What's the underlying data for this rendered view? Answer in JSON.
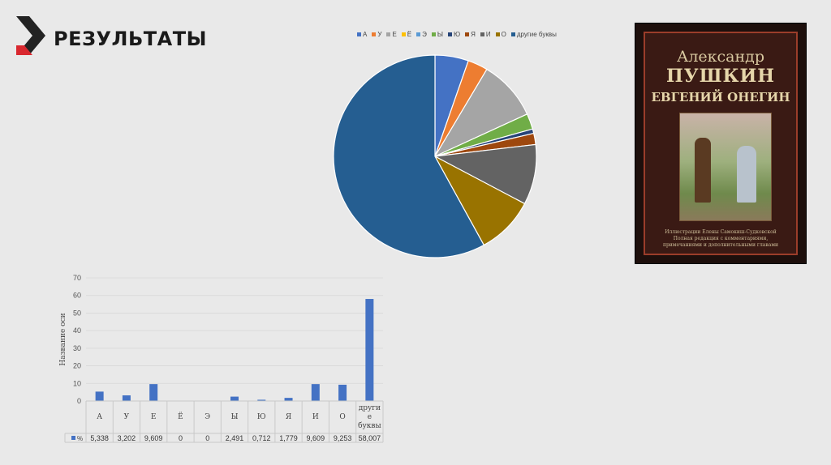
{
  "header": {
    "title": "РЕЗУЛЬТАТЫ"
  },
  "colors": {
    "accent": "#d9282f",
    "logo_dark": "#222222"
  },
  "pie_legend": [
    {
      "label": "А",
      "color": "#4472c4"
    },
    {
      "label": "У",
      "color": "#ed7d31"
    },
    {
      "label": "Е",
      "color": "#a5a5a5"
    },
    {
      "label": "Ё",
      "color": "#ffc000"
    },
    {
      "label": "Э",
      "color": "#5b9bd5"
    },
    {
      "label": "Ы",
      "color": "#70ad47"
    },
    {
      "label": "Ю",
      "color": "#264478"
    },
    {
      "label": "Я",
      "color": "#9e480e"
    },
    {
      "label": "И",
      "color": "#636363"
    },
    {
      "label": "О",
      "color": "#997300"
    },
    {
      "label": "другие буквы",
      "color": "#255e91"
    }
  ],
  "chart_data": [
    {
      "type": "pie",
      "categories": [
        "А",
        "У",
        "Е",
        "Ё",
        "Э",
        "Ы",
        "Ю",
        "Я",
        "И",
        "О",
        "другие буквы"
      ],
      "values": [
        5.338,
        3.202,
        9.609,
        0,
        0,
        2.491,
        0.712,
        1.779,
        9.609,
        9.253,
        58.007
      ],
      "legend": "top"
    },
    {
      "type": "bar",
      "categories": [
        "А",
        "У",
        "Е",
        "Ё",
        "Э",
        "Ы",
        "Ю",
        "Я",
        "И",
        "О",
        "другие буквы"
      ],
      "category_lines": [
        [
          "А"
        ],
        [
          "У"
        ],
        [
          "Е"
        ],
        [
          "Ё"
        ],
        [
          "Э"
        ],
        [
          "Ы"
        ],
        [
          "Ю"
        ],
        [
          "Я"
        ],
        [
          "И"
        ],
        [
          "О"
        ],
        [
          "други",
          "е",
          "буквы"
        ]
      ],
      "series": [
        {
          "name": "%",
          "values": [
            5.338,
            3.202,
            9.609,
            0,
            0,
            2.491,
            0.712,
            1.779,
            9.609,
            9.253,
            58.007
          ],
          "labels": [
            "5,338",
            "3,202",
            "9,609",
            "0",
            "0",
            "2,491",
            "0,712",
            "1,779",
            "9,609",
            "9,253",
            "58,007"
          ]
        }
      ],
      "ylabel": "Название оси",
      "ylim": [
        0,
        70
      ],
      "yticks": [
        0,
        10,
        20,
        30,
        40,
        50,
        60,
        70
      ],
      "grid": true,
      "data_table": true
    }
  ],
  "book": {
    "author_first": "Александр",
    "author_last": "ПУШКИН",
    "title": "ЕВГЕНИЙ ОНЕГИН",
    "caption_1": "Иллюстрации Елены Самокиш-Судковской",
    "caption_2": "Полная редакция с комментариями,",
    "caption_3": "примечаниями и дополнительными главами"
  }
}
